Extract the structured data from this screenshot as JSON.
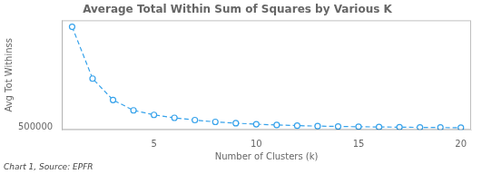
{
  "chart_data": {
    "type": "line",
    "title": "Average Total Within Sum of Squares by Various K",
    "xlabel": "Number of Clusters (k)",
    "ylabel": "Avg Tot Withinss",
    "caption": "Chart 1, Source: EPFR",
    "x": [
      1,
      2,
      3,
      4,
      5,
      6,
      7,
      8,
      9,
      10,
      11,
      12,
      13,
      14,
      15,
      16,
      17,
      18,
      19,
      20
    ],
    "values": [
      2050000,
      1250000,
      920000,
      760000,
      690000,
      645000,
      610000,
      582000,
      562000,
      546000,
      534000,
      524000,
      517000,
      511000,
      507000,
      503000,
      500000,
      497000,
      495000,
      492000
    ],
    "xlim": [
      0.5,
      20.5
    ],
    "xticks": [
      5,
      10,
      15,
      20
    ],
    "ylim": [
      460000,
      2150000
    ],
    "yticks": [
      500000
    ],
    "marker": "circle",
    "line_style": "dashed",
    "grid": false
  }
}
